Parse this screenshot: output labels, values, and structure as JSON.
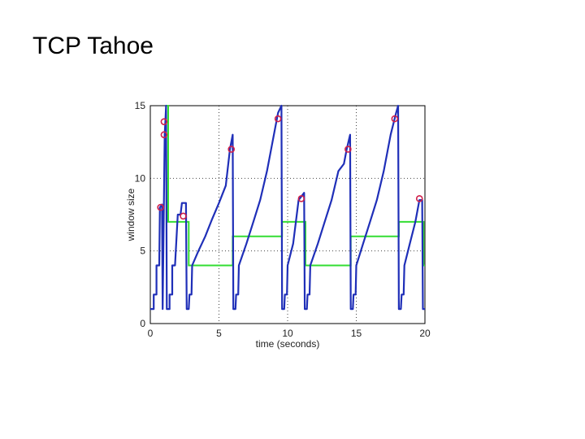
{
  "slide": {
    "title": "TCP Tahoe"
  },
  "chart_data": {
    "type": "line",
    "title": "",
    "xlabel": "time (seconds)",
    "ylabel": "window size",
    "xlim": [
      0,
      20
    ],
    "ylim": [
      0,
      15
    ],
    "x_ticks": [
      0,
      5,
      10,
      15,
      20
    ],
    "y_ticks": [
      0,
      5,
      10,
      15
    ],
    "grid": true,
    "grid_style": "dotted",
    "colors": {
      "window": "#1f2fb8",
      "threshold": "#33dd33",
      "loss_marker": "#d0204a"
    },
    "series": [
      {
        "role": "congestion-window",
        "points": [
          [
            0,
            1
          ],
          [
            0.25,
            1
          ],
          [
            0.25,
            2
          ],
          [
            0.45,
            2
          ],
          [
            0.45,
            4
          ],
          [
            0.65,
            4
          ],
          [
            0.7,
            8
          ],
          [
            0.85,
            8.2
          ],
          [
            0.9,
            1
          ],
          [
            1.05,
            13
          ],
          [
            1.1,
            14
          ],
          [
            1.15,
            15
          ],
          [
            1.2,
            1
          ],
          [
            1.4,
            1
          ],
          [
            1.4,
            2
          ],
          [
            1.6,
            2
          ],
          [
            1.6,
            4
          ],
          [
            1.8,
            4
          ],
          [
            2.0,
            7.5
          ],
          [
            2.2,
            7.5
          ],
          [
            2.3,
            8.3
          ],
          [
            2.6,
            8.3
          ],
          [
            2.65,
            1
          ],
          [
            2.8,
            1
          ],
          [
            2.85,
            2
          ],
          [
            3.0,
            2
          ],
          [
            3.05,
            4
          ],
          [
            3.5,
            5
          ],
          [
            4.0,
            6
          ],
          [
            4.5,
            7.2
          ],
          [
            5.0,
            8.3
          ],
          [
            5.5,
            9.5
          ],
          [
            5.8,
            12
          ],
          [
            6.0,
            13
          ],
          [
            6.05,
            1
          ],
          [
            6.2,
            1
          ],
          [
            6.25,
            2
          ],
          [
            6.4,
            2
          ],
          [
            6.45,
            4
          ],
          [
            7.0,
            5.5
          ],
          [
            7.5,
            7
          ],
          [
            8.0,
            8.5
          ],
          [
            8.5,
            10.5
          ],
          [
            9.0,
            13
          ],
          [
            9.3,
            14.5
          ],
          [
            9.55,
            15
          ],
          [
            9.6,
            1
          ],
          [
            9.75,
            1
          ],
          [
            9.8,
            2
          ],
          [
            9.95,
            2
          ],
          [
            10.0,
            4
          ],
          [
            10.4,
            5.5
          ],
          [
            10.8,
            8.5
          ],
          [
            11.2,
            9
          ],
          [
            11.25,
            1
          ],
          [
            11.4,
            1
          ],
          [
            11.45,
            2
          ],
          [
            11.6,
            2
          ],
          [
            11.65,
            4
          ],
          [
            12.2,
            5.5
          ],
          [
            12.7,
            7
          ],
          [
            13.2,
            8.5
          ],
          [
            13.7,
            10.5
          ],
          [
            14.1,
            11
          ],
          [
            14.3,
            12
          ],
          [
            14.55,
            13
          ],
          [
            14.6,
            1
          ],
          [
            14.75,
            1
          ],
          [
            14.8,
            2
          ],
          [
            14.95,
            2
          ],
          [
            15.0,
            4
          ],
          [
            15.5,
            5.5
          ],
          [
            16.0,
            7
          ],
          [
            16.5,
            8.5
          ],
          [
            17.0,
            10.5
          ],
          [
            17.5,
            13
          ],
          [
            17.9,
            14.5
          ],
          [
            18.05,
            15
          ],
          [
            18.1,
            1
          ],
          [
            18.25,
            1
          ],
          [
            18.3,
            2
          ],
          [
            18.45,
            2
          ],
          [
            18.5,
            4
          ],
          [
            18.9,
            5.5
          ],
          [
            19.3,
            7
          ],
          [
            19.6,
            8.5
          ],
          [
            19.8,
            8.5
          ],
          [
            19.85,
            1
          ],
          [
            20,
            1
          ]
        ]
      },
      {
        "role": "slow-start-threshold",
        "points": [
          [
            1.2,
            15
          ],
          [
            1.3,
            15
          ],
          [
            1.3,
            7
          ],
          [
            2.8,
            7
          ],
          [
            2.8,
            4
          ],
          [
            6.0,
            4
          ],
          [
            6.0,
            6
          ],
          [
            9.6,
            6
          ],
          [
            9.6,
            7
          ],
          [
            11.3,
            7
          ],
          [
            11.3,
            4
          ],
          [
            14.6,
            4
          ],
          [
            14.6,
            6
          ],
          [
            18.1,
            6
          ],
          [
            18.1,
            7
          ],
          [
            19.9,
            7
          ],
          [
            19.9,
            4
          ],
          [
            20,
            4
          ]
        ]
      }
    ],
    "loss_markers": [
      [
        1.0,
        13.9
      ],
      [
        1.0,
        13.0
      ],
      [
        0.75,
        8.0
      ],
      [
        2.4,
        7.4
      ],
      [
        5.9,
        12.0
      ],
      [
        9.3,
        14.1
      ],
      [
        11.0,
        8.6
      ],
      [
        14.4,
        12.0
      ],
      [
        17.8,
        14.1
      ],
      [
        19.6,
        8.6
      ]
    ]
  }
}
